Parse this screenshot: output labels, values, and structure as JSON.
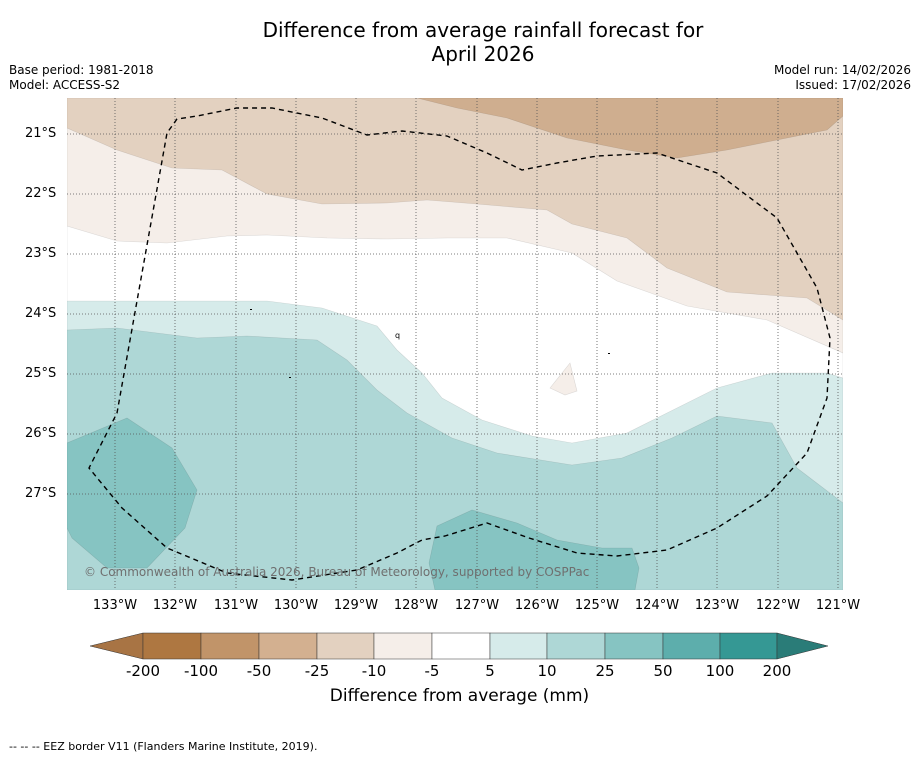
{
  "title": {
    "line1": "Difference from average rainfall forecast for",
    "line2": "April 2026"
  },
  "meta": {
    "base_period": "Base period: 1981-2018",
    "model": "Model: ACCESS-S2",
    "model_run": "Model run: 14/02/2026",
    "issued": "Issued: 17/02/2026"
  },
  "map": {
    "lat_labels": [
      "21°S",
      "22°S",
      "23°S",
      "24°S",
      "25°S",
      "26°S",
      "27°S"
    ],
    "lon_labels": [
      "133°W",
      "132°W",
      "131°W",
      "130°W",
      "129°W",
      "128°W",
      "127°W",
      "126°W",
      "125°W",
      "124°W",
      "123°W",
      "122°W",
      "121°W"
    ],
    "copyright": "© Commonwealth of Australia 2026, Bureau of Meteorology, supported by COSPPac",
    "island_label": "q",
    "colors": {
      "dry_strong": "#cfae8f",
      "dry_moderate": "#e3d1c0",
      "dry_light": "#f5eee9",
      "neutral": "#ffffff",
      "wet_light": "#d6ebea",
      "wet_moderate": "#aed7d6",
      "wet_strong": "#86c4c2"
    }
  },
  "colorbar": {
    "title": "Difference from average (mm)",
    "labels": [
      "-200",
      "-100",
      "-50",
      "-25",
      "-10",
      "-5",
      "5",
      "10",
      "25",
      "50",
      "100",
      "200"
    ],
    "colors": [
      "#a87444",
      "#ae7741",
      "#c19469",
      "#d3b090",
      "#e3d1c0",
      "#f5eee9",
      "#ffffff",
      "#d6ebea",
      "#aed7d6",
      "#86c4c2",
      "#5daeac",
      "#359894",
      "#2a7c78"
    ]
  },
  "footnote": "--  --  -- EEZ border V11 (Flanders Marine Institute, 2019)."
}
